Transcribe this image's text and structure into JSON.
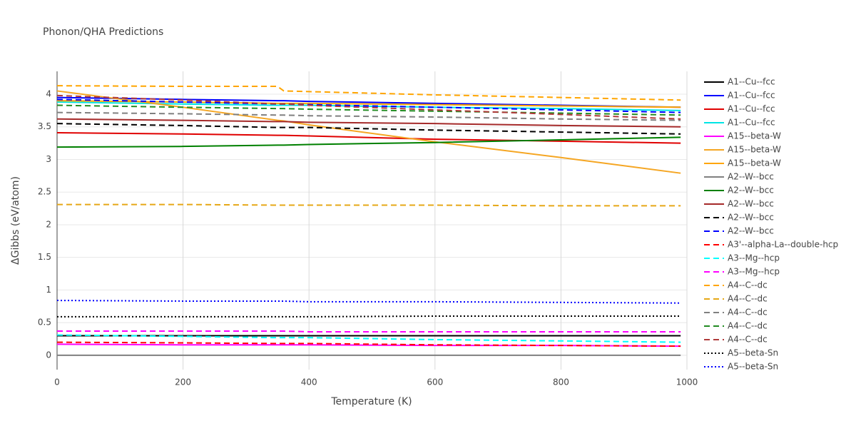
{
  "chart_data": {
    "type": "line",
    "title": "Phonon/QHA Predictions",
    "x_label": "Temperature (K)",
    "y_label": "ΔGibbs (eV/atom)",
    "x": [
      0,
      200,
      350,
      360,
      400,
      600,
      800,
      990
    ],
    "xlim": [
      0,
      1000
    ],
    "xticks": [
      0,
      200,
      400,
      600,
      800,
      1000
    ],
    "ylim": [
      -0.22,
      4.35
    ],
    "yticks": [
      0,
      0.5,
      1,
      1.5,
      2,
      2.5,
      3,
      3.5,
      4
    ],
    "grid": true,
    "legend": "right",
    "series": [
      {
        "name": "A1--Cu--fcc",
        "color": "#000000",
        "dash": "solid",
        "values": [
          0.3,
          0.3,
          0.3,
          0.3,
          0.3,
          0.3,
          0.3,
          0.3
        ]
      },
      {
        "name": "A1--Cu--fcc",
        "color": "#0000ff",
        "dash": "solid",
        "values": [
          3.95,
          3.92,
          3.9,
          3.9,
          3.89,
          3.86,
          3.83,
          3.8
        ]
      },
      {
        "name": "A1--Cu--fcc",
        "color": "#e00000",
        "dash": "solid",
        "values": [
          3.41,
          3.39,
          3.37,
          3.37,
          3.36,
          3.31,
          3.28,
          3.25
        ]
      },
      {
        "name": "A1--Cu--fcc",
        "color": "#00e5e5",
        "dash": "solid",
        "values": [
          3.88,
          3.85,
          3.83,
          3.83,
          3.83,
          3.8,
          3.78,
          3.75
        ]
      },
      {
        "name": "A15--beta-W",
        "color": "#ff00ff",
        "dash": "solid",
        "values": [
          0.17,
          0.16,
          0.16,
          0.16,
          0.16,
          0.15,
          0.15,
          0.14
        ]
      },
      {
        "name": "A15--beta-W",
        "color": "#f5a623",
        "dash": "solid",
        "values": [
          4.05,
          3.8,
          3.6,
          3.59,
          3.53,
          3.27,
          3.03,
          2.79
        ]
      },
      {
        "name": "A15--beta-W",
        "color": "#ffa500",
        "dash": "solid",
        "values": [
          3.9,
          3.88,
          3.86,
          3.86,
          3.86,
          3.84,
          3.82,
          3.8
        ]
      },
      {
        "name": "A2--W--bcc",
        "color": "#808080",
        "dash": "solid",
        "values": [
          0,
          0,
          0,
          0,
          0,
          0,
          0,
          0
        ]
      },
      {
        "name": "A2--W--bcc",
        "color": "#008000",
        "dash": "solid",
        "values": [
          3.19,
          3.2,
          3.22,
          3.22,
          3.23,
          3.26,
          3.3,
          3.34
        ]
      },
      {
        "name": "A2--W--bcc",
        "color": "#a52a2a",
        "dash": "solid",
        "values": [
          3.62,
          3.6,
          3.58,
          3.58,
          3.57,
          3.55,
          3.52,
          3.5
        ]
      },
      {
        "name": "A2--W--bcc",
        "color": "#000000",
        "dash": "dash",
        "values": [
          3.55,
          3.52,
          3.49,
          3.49,
          3.49,
          3.45,
          3.42,
          3.39
        ]
      },
      {
        "name": "A2--W--bcc",
        "color": "#0000ff",
        "dash": "dash",
        "values": [
          3.92,
          3.88,
          3.85,
          3.85,
          3.84,
          3.8,
          3.76,
          3.72
        ]
      },
      {
        "name": "A3'--alpha-La--double-hcp",
        "color": "#ff0000",
        "dash": "dash",
        "values": [
          0.2,
          0.19,
          0.18,
          0.18,
          0.18,
          0.16,
          0.15,
          0.14
        ]
      },
      {
        "name": "A3--Mg--hcp",
        "color": "#00ffff",
        "dash": "dash",
        "values": [
          0.31,
          0.29,
          0.27,
          0.27,
          0.27,
          0.24,
          0.22,
          0.2
        ]
      },
      {
        "name": "A3--Mg--hcp",
        "color": "#ff00ff",
        "dash": "dash",
        "values": [
          0.37,
          0.37,
          0.37,
          0.37,
          0.36,
          0.36,
          0.36,
          0.36
        ]
      },
      {
        "name": "A4--C--dc",
        "color": "#ffa500",
        "dash": "dash",
        "values": [
          4.13,
          4.12,
          4.12,
          4.05,
          4.04,
          3.99,
          3.95,
          3.91
        ]
      },
      {
        "name": "A4--C--dc",
        "color": "#e6a817",
        "dash": "dash",
        "values": [
          2.31,
          2.31,
          2.3,
          2.3,
          2.3,
          2.3,
          2.29,
          2.29
        ]
      },
      {
        "name": "A4--C--dc",
        "color": "#808080",
        "dash": "dash",
        "values": [
          3.72,
          3.7,
          3.68,
          3.68,
          3.67,
          3.65,
          3.62,
          3.6
        ]
      },
      {
        "name": "A4--C--dc",
        "color": "#228b22",
        "dash": "dash",
        "values": [
          3.83,
          3.8,
          3.78,
          3.78,
          3.77,
          3.74,
          3.71,
          3.68
        ]
      },
      {
        "name": "A4--C--dc",
        "color": "#b03a3a",
        "dash": "dash",
        "values": [
          3.98,
          3.91,
          3.85,
          3.85,
          3.83,
          3.76,
          3.69,
          3.62
        ]
      },
      {
        "name": "A5--beta-Sn",
        "color": "#000000",
        "dash": "dot",
        "values": [
          0.59,
          0.59,
          0.59,
          0.59,
          0.59,
          0.6,
          0.6,
          0.6
        ]
      },
      {
        "name": "A5--beta-Sn",
        "color": "#0000ff",
        "dash": "dot",
        "values": [
          0.84,
          0.83,
          0.83,
          0.83,
          0.82,
          0.82,
          0.81,
          0.8
        ]
      }
    ]
  }
}
